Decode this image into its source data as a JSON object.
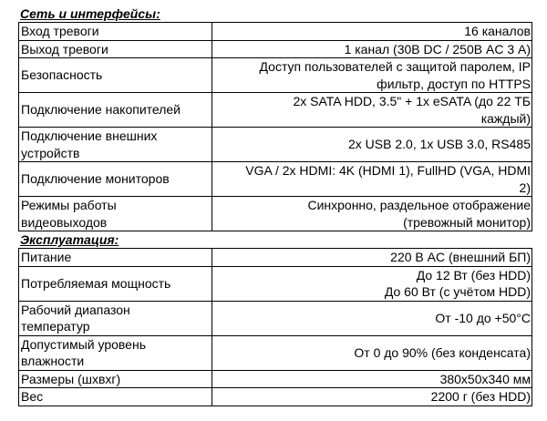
{
  "sections": [
    {
      "title": "Сеть и интерфейсы:",
      "rows": [
        {
          "label": "Вход тревоги",
          "value": "16 каналов"
        },
        {
          "label": "Выход тревоги",
          "value": "1 канал (30В DC / 250В AC 3 А)"
        },
        {
          "label": "Безопасность",
          "value": "Доступ пользователей с защитой паролем, IP\nфильтр, доступ по HTTPS"
        },
        {
          "label": "Подключение накопителей",
          "value": "2x SATA HDD, 3.5\" + 1x eSATA (до 22 ТБ\nкаждый)"
        },
        {
          "label": "Подключение внешних\nустройств",
          "value": "2x USB 2.0, 1x USB 3.0, RS485"
        },
        {
          "label": "Подключение мониторов",
          "value": "VGA / 2x HDMI: 4K (HDMI 1), FullHD (VGA, HDMI\n2)"
        },
        {
          "label": "Режимы работы\nвидеовыходов",
          "value": "Синхронно, раздельное отображение\n(тревожный монитор)"
        }
      ]
    },
    {
      "title": "Эксплуатация:",
      "rows": [
        {
          "label": "Питание",
          "value": "220 В AC (внешний БП)"
        },
        {
          "label": "Потребляемая мощность",
          "value": "До 12 Вт (без HDD)\nДо 60 Вт (с учётом HDD)"
        },
        {
          "label": "Рабочий диапазон\nтемператур",
          "value": "От -10 до +50°C"
        },
        {
          "label": "Допустимый уровень\nвлажности",
          "value": "От 0 до 90% (без конденсата)"
        },
        {
          "label": "Размеры (шxвxг)",
          "value": "380x50x340 мм"
        },
        {
          "label": "Вес",
          "value": "2200 г (без HDD)"
        }
      ]
    }
  ]
}
